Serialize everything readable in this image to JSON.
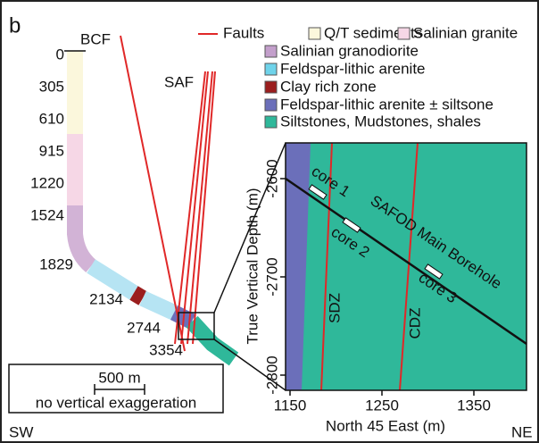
{
  "panel_label": "b",
  "fault_labels": [
    "BCF",
    "SAF"
  ],
  "depth_labels": [
    "0",
    "305",
    "610",
    "915",
    "1220",
    "1524",
    "1829",
    "2134",
    "2744",
    "3354"
  ],
  "legend": [
    "Faults",
    "Q/T sediments",
    "Salinian granite",
    "Salinian granodiorite",
    "Feldspar-lithic arenite",
    "Clay rich zone",
    "Feldspar-lithic arenite ± siltsone",
    "Siltstones, Mudstones, shales"
  ],
  "inset": {
    "y_axis_label": "True Vertical Depth (m)",
    "x_axis_label": "North 45 East (m)",
    "xticks": [
      "1150",
      "1250",
      "1350"
    ],
    "yticks": [
      "-2600",
      "-2700",
      "-2800"
    ],
    "annotations": [
      "core 1",
      "core 2",
      "core 3",
      "SAFOD Main Borehole",
      "SDZ",
      "CDZ"
    ]
  },
  "scale": {
    "bar_label": "500 m",
    "note": "no vertical exaggeration"
  },
  "directions": [
    "SW",
    "NE"
  ]
}
